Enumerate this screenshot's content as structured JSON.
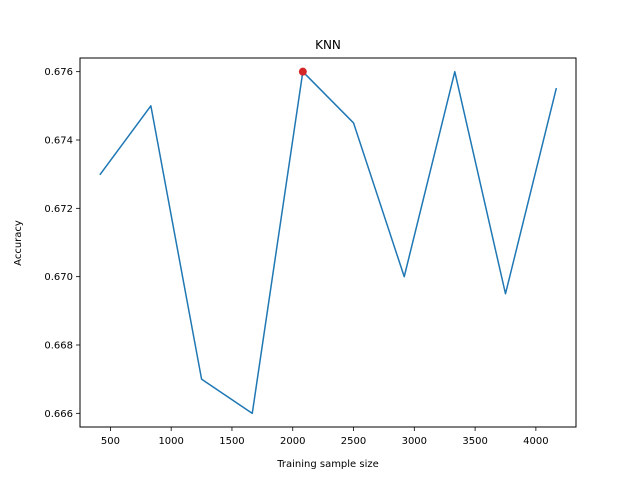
{
  "chart_data": {
    "type": "line",
    "title": "KNN",
    "xlabel": "Training sample size",
    "ylabel": "Accuracy",
    "xlim": [
      250,
      4330
    ],
    "ylim": [
      0.6656,
      0.6764
    ],
    "xticks": [
      500,
      1000,
      1500,
      2000,
      2500,
      3000,
      3500,
      4000
    ],
    "yticks": [
      0.666,
      0.668,
      0.67,
      0.672,
      0.674,
      0.676
    ],
    "ytick_labels": [
      "0.666",
      "0.668",
      "0.670",
      "0.672",
      "0.674",
      "0.676"
    ],
    "grid": false,
    "series": [
      {
        "color": "#1f77b4",
        "x": [
          417,
          833,
          1250,
          1667,
          2083,
          2500,
          2917,
          3333,
          3750,
          4167
        ],
        "y": [
          0.673,
          0.675,
          0.667,
          0.666,
          0.676,
          0.6745,
          0.67,
          0.676,
          0.6695,
          0.6755
        ]
      }
    ],
    "highlight_point": {
      "x": 2083,
      "y": 0.676,
      "color": "#d62728"
    }
  }
}
